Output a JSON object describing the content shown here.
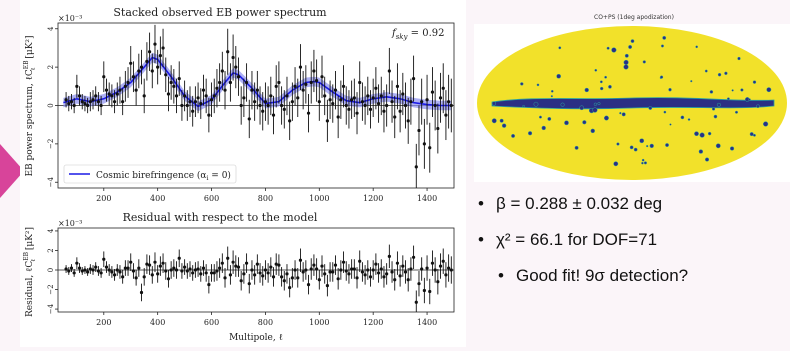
{
  "figure": {
    "top_panel": {
      "title": "Stacked observed EB power spectrum",
      "exponent_label": "×10⁻³",
      "ylabel": "EB power spectrum, ℓC",
      "ylabel_sup": "EB",
      "ylabel_sub": "ℓ",
      "ylabel_unit": " [μK²]",
      "fsky_label": "f",
      "fsky_sub": "sky",
      "fsky_value": " = 0.92",
      "legend_label": "Cosmic birefringence (α",
      "legend_sub": "i",
      "legend_value": " = 0)"
    },
    "bottom_panel": {
      "title": "Residual with respect to the model",
      "exponent_label": "×10⁻³",
      "ylabel": "Residual, ℓC",
      "ylabel_sup": "EB",
      "ylabel_sub": "ℓ",
      "ylabel_unit": " [μK²]",
      "xlabel": "Multipole, ℓ"
    },
    "x_ticks": [
      "200",
      "400",
      "600",
      "800",
      "1000",
      "1200",
      "1400"
    ],
    "top_y_ticks": [
      "−4",
      "−2",
      "0",
      "2",
      "4"
    ],
    "bottom_y_ticks": [
      "−4",
      "−2",
      "0",
      "2",
      "4"
    ]
  },
  "chart_data": [
    {
      "type": "scatter",
      "title": "Stacked observed EB power spectrum",
      "xlabel": "",
      "ylabel": "EB power spectrum, ℓC_ℓ^EB [μK²] (×10⁻³)",
      "xlim": [
        30,
        1500
      ],
      "ylim": [
        -4.3,
        4.3
      ],
      "x": [
        60,
        70,
        80,
        90,
        100,
        110,
        120,
        130,
        140,
        150,
        160,
        170,
        180,
        190,
        200,
        210,
        220,
        230,
        240,
        250,
        260,
        270,
        280,
        290,
        300,
        310,
        320,
        330,
        340,
        350,
        360,
        370,
        380,
        390,
        400,
        410,
        420,
        430,
        440,
        450,
        460,
        470,
        480,
        490,
        500,
        510,
        520,
        530,
        540,
        550,
        560,
        570,
        580,
        590,
        600,
        610,
        620,
        630,
        640,
        650,
        660,
        670,
        680,
        690,
        700,
        710,
        720,
        730,
        740,
        750,
        760,
        770,
        780,
        790,
        800,
        810,
        820,
        830,
        840,
        850,
        860,
        870,
        880,
        890,
        900,
        910,
        920,
        930,
        940,
        950,
        960,
        970,
        980,
        990,
        1000,
        1010,
        1020,
        1030,
        1040,
        1050,
        1060,
        1070,
        1080,
        1090,
        1100,
        1110,
        1120,
        1130,
        1140,
        1150,
        1160,
        1170,
        1180,
        1190,
        1200,
        1210,
        1220,
        1230,
        1240,
        1250,
        1260,
        1270,
        1280,
        1290,
        1300,
        1310,
        1320,
        1330,
        1340,
        1350,
        1360,
        1370,
        1380,
        1390,
        1400,
        1410,
        1420,
        1430,
        1440,
        1450,
        1460,
        1470,
        1480,
        1490
      ],
      "values": [
        0.3,
        0.1,
        0.2,
        0.0,
        1.0,
        0.5,
        0.2,
        0.1,
        0.0,
        0.2,
        0.3,
        0.5,
        0.2,
        0.0,
        1.5,
        0.8,
        0.6,
        0.5,
        0.2,
        0.6,
        0.8,
        0.2,
        1.0,
        1.2,
        2.2,
        1.5,
        0.8,
        1.8,
        2.0,
        0.5,
        2.3,
        2.8,
        1.8,
        3.2,
        2.0,
        2.6,
        3.0,
        1.6,
        0.6,
        1.2,
        1.0,
        0.5,
        1.4,
        0.0,
        0.5,
        0.0,
        0.2,
        -0.3,
        0.2,
        0.4,
        0.1,
        0.8,
        0.5,
        -0.5,
        0.3,
        0.5,
        0.9,
        1.2,
        1.8,
        0.8,
        2.8,
        1.2,
        2.5,
        2.0,
        1.5,
        0.0,
        0.4,
        1.2,
        -0.7,
        0.8,
        0.2,
        0.8,
        0.0,
        -0.3,
        0.2,
        0.0,
        0.5,
        -0.5,
        1.0,
        1.2,
        0.0,
        -0.2,
        0.5,
        -0.8,
        0.2,
        1.0,
        0.4,
        2.0,
        0.8,
        1.1,
        -0.4,
        1.2,
        1.8,
        1.3,
        0.2,
        1.5,
        0.5,
        -0.8,
        0.3,
        0.1,
        0.8,
        -0.6,
        0.3,
        1.0,
        0.0,
        -0.2,
        0.3,
        0.4,
        -0.4,
        1.2,
        0.2,
        0.0,
        0.5,
        -0.2,
        0.4,
        0.9,
        0.1,
        0.5,
        -0.3,
        0.0,
        1.8,
        0.2,
        -0.6,
        1.0,
        -0.3,
        0.6,
        0.0,
        -0.8,
        0.2,
        1.4,
        -3.2,
        -1.3,
        0.2,
        -2.0,
        0.3,
        -2.2,
        0.7,
        0.0,
        -1.2,
        0.4,
        0.9,
        -0.5,
        0.2,
        0.0
      ],
      "errors": [
        0.4,
        0.4,
        0.4,
        0.4,
        0.6,
        0.5,
        0.4,
        0.4,
        0.4,
        0.5,
        0.5,
        0.5,
        0.5,
        0.5,
        0.8,
        0.6,
        0.6,
        0.6,
        0.6,
        0.6,
        0.7,
        0.7,
        0.8,
        0.8,
        0.9,
        0.8,
        0.8,
        0.9,
        0.9,
        0.9,
        1.0,
        1.0,
        0.9,
        1.0,
        0.9,
        1.0,
        1.0,
        0.9,
        0.9,
        0.9,
        0.9,
        0.9,
        0.9,
        0.8,
        0.8,
        0.8,
        0.8,
        0.8,
        0.8,
        0.8,
        0.8,
        0.8,
        0.9,
        0.9,
        0.9,
        0.9,
        1.0,
        1.0,
        1.0,
        1.0,
        1.2,
        1.0,
        1.2,
        1.1,
        1.0,
        1.0,
        1.0,
        1.0,
        1.0,
        1.0,
        1.0,
        1.0,
        1.0,
        1.0,
        1.0,
        1.0,
        1.0,
        1.0,
        1.1,
        1.1,
        1.0,
        1.0,
        1.0,
        1.0,
        1.0,
        1.0,
        1.0,
        1.2,
        1.0,
        1.0,
        1.0,
        1.1,
        1.1,
        1.1,
        1.0,
        1.1,
        1.0,
        1.1,
        1.0,
        1.0,
        1.0,
        1.1,
        1.0,
        1.1,
        1.0,
        1.0,
        1.0,
        1.0,
        1.1,
        1.1,
        1.0,
        1.0,
        1.0,
        1.0,
        1.0,
        1.1,
        1.0,
        1.0,
        1.1,
        1.1,
        1.2,
        1.1,
        1.1,
        1.2,
        1.1,
        1.1,
        1.2,
        1.2,
        1.2,
        1.2,
        1.2,
        1.3,
        1.2,
        1.3,
        1.3,
        1.3,
        1.3,
        1.3,
        1.3,
        1.3,
        1.3,
        1.3,
        1.4,
        1.4
      ],
      "model_curve": {
        "x": [
          50,
          100,
          150,
          200,
          250,
          300,
          350,
          380,
          400,
          450,
          500,
          550,
          600,
          650,
          680,
          700,
          750,
          800,
          850,
          900,
          950,
          980,
          1000,
          1050,
          1100,
          1150,
          1200,
          1250,
          1300,
          1350,
          1400,
          1450,
          1490
        ],
        "y": [
          0.15,
          0.35,
          0.2,
          0.35,
          0.7,
          1.2,
          2.0,
          2.5,
          2.4,
          1.5,
          0.5,
          -0.05,
          0.3,
          1.2,
          1.7,
          1.6,
          0.9,
          0.1,
          0.2,
          0.8,
          1.2,
          1.25,
          1.2,
          0.7,
          0.25,
          0.15,
          0.35,
          0.45,
          0.35,
          0.15,
          0.05,
          0.0,
          0.0
        ],
        "band_halfwidth": 0.25
      },
      "colors": {
        "points": "#111111",
        "model": "#1a1ae6",
        "band": "#8a8ff0"
      },
      "legend": "bottom-left",
      "zero_line": true
    },
    {
      "type": "scatter",
      "title": "Residual with respect to the model",
      "xlabel": "Multipole, ℓ",
      "ylabel": "Residual, ℓC_ℓ^EB [μK²] (×10⁻³)",
      "xlim": [
        30,
        1500
      ],
      "ylim": [
        -4.3,
        4.3
      ],
      "x": [
        60,
        70,
        80,
        90,
        100,
        110,
        120,
        130,
        140,
        150,
        160,
        170,
        180,
        190,
        200,
        210,
        220,
        230,
        240,
        250,
        260,
        270,
        280,
        290,
        300,
        310,
        320,
        330,
        340,
        350,
        360,
        370,
        380,
        390,
        400,
        410,
        420,
        430,
        440,
        450,
        460,
        470,
        480,
        490,
        500,
        510,
        520,
        530,
        540,
        550,
        560,
        570,
        580,
        590,
        600,
        610,
        620,
        630,
        640,
        650,
        660,
        670,
        680,
        690,
        700,
        710,
        720,
        730,
        740,
        750,
        760,
        770,
        780,
        790,
        800,
        810,
        820,
        830,
        840,
        850,
        860,
        870,
        880,
        890,
        900,
        910,
        920,
        930,
        940,
        950,
        960,
        970,
        980,
        990,
        1000,
        1010,
        1020,
        1030,
        1040,
        1050,
        1060,
        1070,
        1080,
        1090,
        1100,
        1110,
        1120,
        1130,
        1140,
        1150,
        1160,
        1170,
        1180,
        1190,
        1200,
        1210,
        1220,
        1230,
        1240,
        1250,
        1260,
        1270,
        1280,
        1290,
        1300,
        1310,
        1320,
        1330,
        1340,
        1350,
        1360,
        1370,
        1380,
        1390,
        1400,
        1410,
        1420,
        1430,
        1440,
        1450,
        1460,
        1470,
        1480,
        1490
      ],
      "values": [
        0.1,
        -0.1,
        0.2,
        -0.3,
        0.7,
        0.2,
        -0.1,
        0.0,
        -0.2,
        0.1,
        0.0,
        0.3,
        -0.1,
        -0.3,
        1.1,
        0.3,
        0.0,
        -0.2,
        -0.5,
        0.0,
        -0.2,
        -0.7,
        0.2,
        0.2,
        0.8,
        -0.1,
        -0.8,
        0.2,
        -2.3,
        -0.7,
        0.6,
        0.5,
        -0.5,
        0.8,
        -0.4,
        0.4,
        0.7,
        -0.1,
        -0.9,
        0.0,
        0.2,
        0.0,
        1.2,
        -0.1,
        0.3,
        -0.1,
        0.1,
        -0.3,
        0.0,
        0.1,
        -0.4,
        0.2,
        -0.3,
        -1.5,
        -0.3,
        -0.3,
        -0.1,
        0.2,
        0.7,
        -0.8,
        1.2,
        -0.5,
        0.8,
        0.4,
        0.3,
        -1.1,
        -0.4,
        0.7,
        -1.4,
        0.0,
        -0.5,
        0.6,
        -0.3,
        -0.6,
        0.0,
        -0.3,
        0.3,
        -0.7,
        0.6,
        0.5,
        -0.7,
        -1.1,
        -0.4,
        -1.8,
        -0.8,
        0.0,
        -0.8,
        1.0,
        -0.2,
        0.0,
        -1.5,
        0.1,
        0.5,
        0.1,
        -1.0,
        0.4,
        -0.4,
        -1.6,
        -0.2,
        -0.2,
        0.5,
        -0.9,
        0.0,
        0.8,
        -0.1,
        -0.4,
        0.1,
        0.1,
        -0.8,
        0.9,
        -0.2,
        -0.5,
        0.0,
        -0.7,
        0.0,
        0.6,
        -0.3,
        0.1,
        -0.7,
        -0.4,
        1.4,
        -0.2,
        -1.0,
        0.7,
        -0.6,
        0.4,
        -0.2,
        -1.0,
        0.1,
        1.3,
        -3.3,
        -1.4,
        0.1,
        -2.1,
        0.2,
        -2.2,
        0.7,
        0.0,
        -1.2,
        0.4,
        0.9,
        -0.5,
        0.2,
        0.0
      ],
      "errors": [
        0.4,
        0.4,
        0.4,
        0.4,
        0.6,
        0.5,
        0.4,
        0.4,
        0.4,
        0.5,
        0.5,
        0.5,
        0.5,
        0.5,
        0.8,
        0.6,
        0.6,
        0.6,
        0.6,
        0.6,
        0.7,
        0.7,
        0.8,
        0.8,
        0.9,
        0.8,
        0.8,
        0.9,
        0.9,
        0.9,
        1.0,
        1.0,
        0.9,
        1.0,
        0.9,
        1.0,
        1.0,
        0.9,
        0.9,
        0.9,
        0.9,
        0.9,
        0.9,
        0.8,
        0.8,
        0.8,
        0.8,
        0.8,
        0.8,
        0.8,
        0.8,
        0.8,
        0.9,
        0.9,
        0.9,
        0.9,
        1.0,
        1.0,
        1.0,
        1.0,
        1.2,
        1.0,
        1.2,
        1.1,
        1.0,
        1.0,
        1.0,
        1.0,
        1.0,
        1.0,
        1.0,
        1.0,
        1.0,
        1.0,
        1.0,
        1.0,
        1.0,
        1.0,
        1.1,
        1.1,
        1.0,
        1.0,
        1.0,
        1.0,
        1.0,
        1.0,
        1.0,
        1.2,
        1.0,
        1.0,
        1.0,
        1.1,
        1.1,
        1.1,
        1.0,
        1.1,
        1.0,
        1.1,
        1.0,
        1.0,
        1.0,
        1.1,
        1.0,
        1.1,
        1.0,
        1.0,
        1.0,
        1.0,
        1.1,
        1.1,
        1.0,
        1.0,
        1.0,
        1.0,
        1.0,
        1.1,
        1.0,
        1.0,
        1.1,
        1.1,
        1.2,
        1.1,
        1.1,
        1.2,
        1.1,
        1.1,
        1.2,
        1.2,
        1.2,
        1.2,
        1.2,
        1.3,
        1.2,
        1.3,
        1.3,
        1.3,
        1.3,
        1.3,
        1.3,
        1.3,
        1.3,
        1.3,
        1.4,
        1.4
      ],
      "zero_line": true
    }
  ],
  "map": {
    "title": "CO+PS (1deg apodization)",
    "background_color": "#ffffff",
    "fill_color": "#f2e12a",
    "mask_color": "#2b2f84",
    "edge_color": "#2aa3a0"
  },
  "bullets": [
    {
      "text": "β = 0.288 ± 0.032 deg"
    },
    {
      "text": "χ² = 66.1 for DOF=71"
    },
    {
      "text": "Good fit! 9σ detection?"
    }
  ],
  "accent_color": "#d8449a"
}
